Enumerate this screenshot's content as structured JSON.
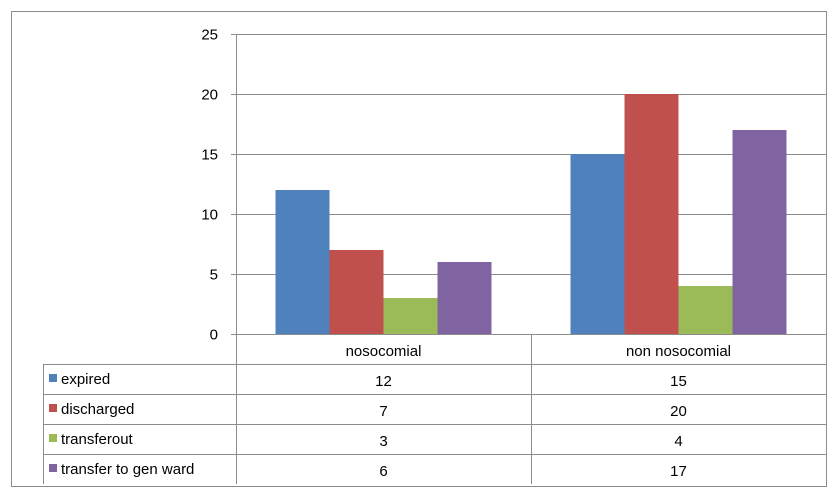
{
  "chart_data": {
    "type": "bar",
    "categories": [
      "nosocomial",
      "non nosocomial"
    ],
    "series": [
      {
        "name": "expired",
        "values": [
          12,
          15
        ],
        "color": "#4F81BD"
      },
      {
        "name": "discharged",
        "values": [
          7,
          20
        ],
        "color": "#C0504D"
      },
      {
        "name": "transferout",
        "values": [
          3,
          4
        ],
        "color": "#9BBB59"
      },
      {
        "name": "transfer to gen ward",
        "values": [
          6,
          17
        ],
        "color": "#8064A2"
      }
    ],
    "yticks": [
      "0",
      "5",
      "10",
      "15",
      "20",
      "25"
    ],
    "ylim": [
      0,
      25
    ],
    "grid": true,
    "legend": "data-table",
    "title": "",
    "xlabel": "",
    "ylabel": ""
  }
}
